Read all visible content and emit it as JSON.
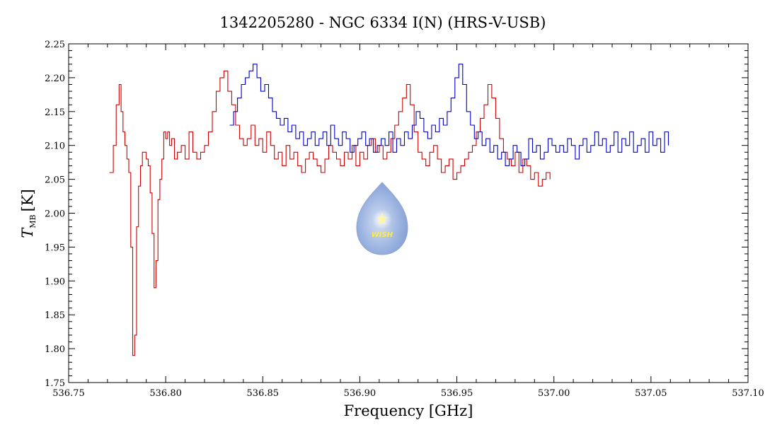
{
  "chart_data": {
    "type": "line",
    "title": "1342205280 - NGC 6334 I(N) (HRS-V-USB)",
    "xlabel": "Frequency [GHz]",
    "ylabel_main": "T",
    "ylabel_sub": "MB",
    "ylabel_unit": "[K]",
    "xlim": [
      536.75,
      537.1
    ],
    "ylim": [
      1.75,
      2.25
    ],
    "x_ticks": [
      "536.75",
      "536.80",
      "536.85",
      "536.90",
      "536.95",
      "537.00",
      "537.05",
      "537.10"
    ],
    "y_ticks": [
      "1.75",
      "1.80",
      "1.85",
      "1.90",
      "1.95",
      "2.00",
      "2.05",
      "2.10",
      "2.15",
      "2.20",
      "2.25"
    ],
    "grid": false,
    "logo_text": "WISH",
    "series": [
      {
        "name": "red",
        "color": "#cc0000",
        "x": [
          536.771,
          536.773,
          536.7745,
          536.776,
          536.777,
          536.778,
          536.779,
          536.78,
          536.781,
          536.782,
          536.783,
          536.784,
          536.785,
          536.786,
          536.787,
          536.788,
          536.789,
          536.79,
          536.791,
          536.792,
          536.793,
          536.794,
          536.795,
          536.796,
          536.797,
          536.798,
          536.799,
          536.8,
          536.801,
          536.802,
          536.803,
          536.8045,
          536.806,
          536.808,
          536.81,
          536.812,
          536.814,
          536.816,
          536.818,
          536.82,
          536.822,
          536.824,
          536.826,
          536.828,
          536.83,
          536.832,
          536.834,
          536.836,
          536.838,
          536.84,
          536.842,
          536.844,
          536.846,
          536.848,
          536.85,
          536.852,
          536.854,
          536.856,
          536.858,
          536.86,
          536.862,
          536.864,
          536.866,
          536.868,
          536.87,
          536.872,
          536.874,
          536.876,
          536.878,
          536.88,
          536.882,
          536.884,
          536.886,
          536.888,
          536.89,
          536.892,
          536.894,
          536.896,
          536.898,
          536.9,
          536.902,
          536.904,
          536.906,
          536.908,
          536.91,
          536.912,
          536.914,
          536.916,
          536.918,
          536.92,
          536.922,
          536.924,
          536.926,
          536.928,
          536.93,
          536.932,
          536.934,
          536.936,
          536.938,
          536.94,
          536.942,
          536.944,
          536.946,
          536.948,
          536.95,
          536.952,
          536.954,
          536.956,
          536.958,
          536.96,
          536.962,
          536.964,
          536.966,
          536.968,
          536.97,
          536.972,
          536.974,
          536.976,
          536.978,
          536.98,
          536.982,
          536.984,
          536.986,
          536.988,
          536.99,
          536.992,
          536.994,
          536.996,
          536.998
        ],
        "y": [
          2.06,
          2.1,
          2.16,
          2.19,
          2.15,
          2.12,
          2.1,
          2.08,
          2.06,
          1.95,
          1.79,
          1.82,
          1.98,
          2.04,
          2.07,
          2.09,
          2.09,
          2.08,
          2.07,
          2.03,
          1.97,
          1.89,
          1.93,
          2.02,
          2.05,
          2.08,
          2.12,
          2.11,
          2.12,
          2.1,
          2.11,
          2.08,
          2.09,
          2.1,
          2.08,
          2.12,
          2.09,
          2.08,
          2.09,
          2.1,
          2.12,
          2.15,
          2.18,
          2.2,
          2.21,
          2.18,
          2.16,
          2.13,
          2.11,
          2.1,
          2.11,
          2.13,
          2.1,
          2.11,
          2.09,
          2.12,
          2.1,
          2.08,
          2.09,
          2.07,
          2.1,
          2.08,
          2.09,
          2.07,
          2.06,
          2.08,
          2.09,
          2.08,
          2.07,
          2.06,
          2.08,
          2.1,
          2.09,
          2.08,
          2.07,
          2.09,
          2.08,
          2.1,
          2.07,
          2.09,
          2.08,
          2.1,
          2.11,
          2.09,
          2.1,
          2.08,
          2.09,
          2.11,
          2.13,
          2.15,
          2.17,
          2.19,
          2.16,
          2.12,
          2.09,
          2.08,
          2.07,
          2.09,
          2.1,
          2.08,
          2.06,
          2.07,
          2.08,
          2.05,
          2.06,
          2.07,
          2.08,
          2.09,
          2.1,
          2.12,
          2.14,
          2.16,
          2.19,
          2.17,
          2.14,
          2.11,
          2.09,
          2.08,
          2.07,
          2.09,
          2.06,
          2.08,
          2.07,
          2.05,
          2.06,
          2.04,
          2.05,
          2.06,
          2.05
        ]
      },
      {
        "name": "blue",
        "color": "#0000cc",
        "x": [
          536.833,
          536.835,
          536.837,
          536.839,
          536.841,
          536.843,
          536.845,
          536.847,
          536.849,
          536.851,
          536.853,
          536.855,
          536.857,
          536.859,
          536.861,
          536.863,
          536.865,
          536.867,
          536.869,
          536.871,
          536.873,
          536.875,
          536.877,
          536.879,
          536.881,
          536.883,
          536.885,
          536.887,
          536.889,
          536.891,
          536.893,
          536.895,
          536.897,
          536.899,
          536.901,
          536.903,
          536.905,
          536.907,
          536.909,
          536.911,
          536.913,
          536.915,
          536.917,
          536.919,
          536.921,
          536.923,
          536.925,
          536.927,
          536.929,
          536.931,
          536.933,
          536.935,
          536.937,
          536.939,
          536.941,
          536.943,
          536.945,
          536.947,
          536.949,
          536.951,
          536.953,
          536.955,
          536.957,
          536.959,
          536.961,
          536.963,
          536.965,
          536.967,
          536.969,
          536.971,
          536.973,
          536.975,
          536.977,
          536.979,
          536.981,
          536.983,
          536.985,
          536.987,
          536.989,
          536.991,
          536.993,
          536.995,
          536.997,
          536.999,
          537.001,
          537.003,
          537.005,
          537.007,
          537.009,
          537.011,
          537.013,
          537.015,
          537.017,
          537.019,
          537.021,
          537.023,
          537.025,
          537.027,
          537.029,
          537.031,
          537.033,
          537.035,
          537.037,
          537.039,
          537.041,
          537.043,
          537.045,
          537.047,
          537.049,
          537.051,
          537.053,
          537.055,
          537.057,
          537.059
        ],
        "y": [
          2.13,
          2.15,
          2.17,
          2.19,
          2.2,
          2.21,
          2.22,
          2.2,
          2.18,
          2.19,
          2.17,
          2.15,
          2.14,
          2.13,
          2.14,
          2.12,
          2.13,
          2.11,
          2.12,
          2.1,
          2.11,
          2.12,
          2.1,
          2.11,
          2.12,
          2.1,
          2.13,
          2.11,
          2.1,
          2.12,
          2.11,
          2.09,
          2.1,
          2.11,
          2.12,
          2.1,
          2.11,
          2.09,
          2.1,
          2.11,
          2.1,
          2.12,
          2.09,
          2.11,
          2.1,
          2.12,
          2.11,
          2.13,
          2.15,
          2.14,
          2.12,
          2.11,
          2.13,
          2.12,
          2.14,
          2.13,
          2.15,
          2.17,
          2.2,
          2.22,
          2.19,
          2.15,
          2.13,
          2.11,
          2.12,
          2.1,
          2.11,
          2.09,
          2.1,
          2.08,
          2.09,
          2.07,
          2.08,
          2.1,
          2.09,
          2.07,
          2.08,
          2.11,
          2.09,
          2.1,
          2.08,
          2.09,
          2.11,
          2.1,
          2.09,
          2.1,
          2.09,
          2.11,
          2.1,
          2.08,
          2.1,
          2.11,
          2.09,
          2.1,
          2.12,
          2.1,
          2.11,
          2.09,
          2.1,
          2.12,
          2.09,
          2.11,
          2.1,
          2.12,
          2.09,
          2.1,
          2.11,
          2.09,
          2.12,
          2.1,
          2.11,
          2.09,
          2.12,
          2.1
        ]
      }
    ]
  }
}
